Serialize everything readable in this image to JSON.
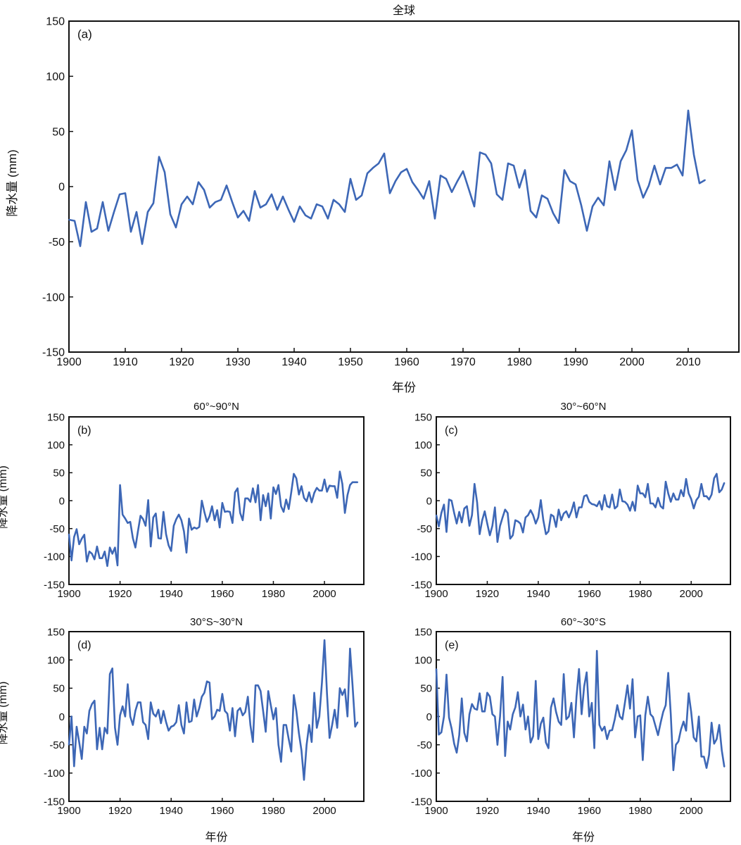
{
  "line_color": "#3d67b6",
  "chart_data": [
    {
      "type": "line",
      "panel": "(a)",
      "title": "全球",
      "xlabel": "年份",
      "ylabel": "降水量 (mm)",
      "xlim": [
        1900,
        2019
      ],
      "ylim": [
        -150,
        150
      ],
      "xticks": [
        1900,
        1910,
        1920,
        1930,
        1940,
        1950,
        1960,
        1970,
        1980,
        1990,
        2000,
        2010
      ],
      "yticks": [
        -150,
        -100,
        -50,
        0,
        50,
        100,
        150
      ],
      "x_start": 1900,
      "values": [
        -30,
        -31,
        -54,
        -14,
        -41,
        -38,
        -14,
        -40,
        -23,
        -7,
        -6,
        -41,
        -23,
        -52,
        -23,
        -15,
        27,
        13,
        -25,
        -37,
        -16,
        -9,
        -16,
        4,
        -3,
        -19,
        -14,
        -12,
        1,
        -14,
        -28,
        -22,
        -31,
        -4,
        -19,
        -16,
        -7,
        -21,
        -9,
        -21,
        -32,
        -18,
        -26,
        -29,
        -16,
        -18,
        -29,
        -12,
        -16,
        -23,
        7,
        -12,
        -8,
        12,
        17,
        21,
        30,
        -6,
        5,
        13,
        16,
        4,
        -3,
        -11,
        5,
        -29,
        10,
        7,
        -5,
        5,
        14,
        -2,
        -18,
        31,
        29,
        21,
        -7,
        -12,
        21,
        19,
        -1,
        15,
        -22,
        -28,
        -8,
        -11,
        -24,
        -33,
        15,
        5,
        2,
        -17,
        -40,
        -18,
        -10,
        -17,
        23,
        -3,
        23,
        33,
        51,
        6,
        -10,
        1,
        19,
        2,
        17,
        17,
        20,
        10,
        69,
        29,
        3,
        6
      ]
    },
    {
      "type": "line",
      "panel": "(b)",
      "title": "60°~90°N",
      "xlabel": "",
      "ylabel": "降水量 (mm)",
      "xlim": [
        1900,
        2015.4
      ],
      "ylim": [
        -150,
        150
      ],
      "xticks": [
        1900,
        1920,
        1940,
        1960,
        1980,
        2000
      ],
      "yticks": [
        -150,
        -100,
        -50,
        0,
        50,
        100,
        150
      ],
      "x_start": 1900,
      "values": [
        -60,
        -107,
        -65,
        -51,
        -78,
        -68,
        -61,
        -109,
        -91,
        -95,
        -105,
        -82,
        -103,
        -103,
        -91,
        -117,
        -84,
        -95,
        -84,
        -116,
        28,
        -25,
        -32,
        -40,
        -38,
        -67,
        -84,
        -55,
        -27,
        -33,
        -45,
        1,
        -82,
        -30,
        -23,
        -67,
        -68,
        -20,
        -60,
        -80,
        -90,
        -45,
        -33,
        -25,
        -35,
        -55,
        -93,
        -32,
        -52,
        -48,
        -50,
        -47,
        0,
        -20,
        -38,
        -28,
        -10,
        -35,
        -17,
        -48,
        -4,
        -20,
        -19,
        -20,
        -40,
        15,
        22,
        -22,
        -35,
        4,
        4,
        -2,
        22,
        -3,
        28,
        -35,
        10,
        -10,
        13,
        -32,
        24,
        12,
        28,
        -10,
        -20,
        2,
        -15,
        15,
        48,
        40,
        11,
        26,
        5,
        -1,
        15,
        -3,
        14,
        23,
        18,
        18,
        38,
        16,
        27,
        26,
        26,
        5,
        52,
        30,
        -22,
        10,
        28,
        33,
        33,
        33
      ]
    },
    {
      "type": "line",
      "panel": "(c)",
      "title": "30°~60°N",
      "xlabel": "",
      "ylabel": "",
      "xlim": [
        1900,
        2015.4
      ],
      "ylim": [
        -150,
        150
      ],
      "xticks": [
        1900,
        1920,
        1940,
        1960,
        1980,
        2000
      ],
      "yticks": [
        -150,
        -100,
        -50,
        0,
        50,
        100,
        150
      ],
      "x_start": 1900,
      "values": [
        -26,
        -46,
        -22,
        -7,
        -56,
        2,
        0,
        -22,
        -41,
        -20,
        -39,
        -14,
        -10,
        -45,
        -26,
        30,
        -3,
        -60,
        -35,
        -19,
        -41,
        -62,
        -45,
        -12,
        -74,
        -45,
        -30,
        -16,
        -22,
        -68,
        -62,
        -35,
        -37,
        -41,
        -57,
        -30,
        -26,
        -17,
        -26,
        -41,
        -30,
        1,
        -35,
        -60,
        -55,
        -25,
        -28,
        -47,
        -16,
        -35,
        -23,
        -19,
        -30,
        -19,
        -3,
        -30,
        -12,
        -12,
        8,
        10,
        -2,
        -6,
        -7,
        -10,
        -1,
        -16,
        10,
        -10,
        -12,
        11,
        -14,
        -10,
        20,
        -1,
        -2,
        -7,
        -18,
        -2,
        -18,
        27,
        13,
        13,
        6,
        30,
        -5,
        -5,
        -12,
        5,
        -10,
        -14,
        34,
        13,
        -2,
        13,
        2,
        2,
        19,
        8,
        39,
        13,
        3,
        -14,
        1,
        7,
        30,
        8,
        8,
        2,
        11,
        40,
        48,
        15,
        20,
        32
      ]
    },
    {
      "type": "line",
      "panel": "(d)",
      "title": "30°S~30°N",
      "xlabel": "年份",
      "ylabel": "降水量 (mm)",
      "xlim": [
        1900,
        2015.4
      ],
      "ylim": [
        -150,
        150
      ],
      "xticks": [
        1900,
        1920,
        1940,
        1960,
        1980,
        2000
      ],
      "yticks": [
        -150,
        -100,
        -50,
        0,
        50,
        100,
        150
      ],
      "x_start": 1900,
      "values": [
        -50,
        0,
        -88,
        -18,
        -45,
        -75,
        -18,
        -30,
        10,
        22,
        28,
        -58,
        -20,
        -58,
        -20,
        -30,
        75,
        85,
        -20,
        -50,
        2,
        18,
        0,
        57,
        0,
        -15,
        10,
        25,
        25,
        -10,
        -15,
        -40,
        25,
        5,
        0,
        12,
        -12,
        10,
        -10,
        -25,
        -18,
        -16,
        -10,
        20,
        -15,
        -30,
        25,
        -10,
        -8,
        30,
        0,
        15,
        35,
        42,
        62,
        60,
        -5,
        0,
        12,
        10,
        40,
        10,
        5,
        -25,
        15,
        -35,
        10,
        15,
        2,
        8,
        35,
        -15,
        -45,
        55,
        55,
        45,
        10,
        -27,
        45,
        20,
        -5,
        15,
        -50,
        -80,
        -15,
        -15,
        -40,
        -62,
        38,
        10,
        -30,
        -60,
        -112,
        -50,
        -15,
        -45,
        42,
        -20,
        0,
        60,
        135,
        40,
        -38,
        -15,
        12,
        -20,
        50,
        38,
        48,
        0,
        120,
        55,
        -18,
        -10
      ]
    },
    {
      "type": "line",
      "panel": "(e)",
      "title": "60°~30°S",
      "xlabel": "年份",
      "ylabel": "",
      "xlim": [
        1900,
        2015.4
      ],
      "ylim": [
        -150,
        150
      ],
      "xticks": [
        1900,
        1920,
        1940,
        1960,
        1980,
        2000
      ],
      "yticks": [
        -150,
        -100,
        -50,
        0,
        50,
        100,
        150
      ],
      "x_start": 1900,
      "values": [
        84,
        -32,
        -28,
        0,
        74,
        -2,
        -21,
        -48,
        -64,
        -33,
        32,
        -29,
        -44,
        4,
        22,
        14,
        12,
        41,
        9,
        9,
        42,
        35,
        4,
        0,
        -50,
        0,
        70,
        -70,
        -9,
        -23,
        4,
        16,
        43,
        0,
        21,
        -23,
        0,
        -46,
        -35,
        63,
        -40,
        -13,
        -2,
        -46,
        -56,
        16,
        32,
        8,
        -9,
        -15,
        75,
        -5,
        0,
        24,
        -37,
        35,
        84,
        4,
        53,
        78,
        0,
        24,
        -56,
        116,
        -15,
        -25,
        -18,
        -40,
        -25,
        -24,
        -5,
        20,
        0,
        -5,
        24,
        55,
        14,
        66,
        -37,
        0,
        2,
        -77,
        2,
        35,
        4,
        -1,
        -17,
        -33,
        -11,
        8,
        20,
        77,
        4,
        -95,
        -50,
        -44,
        -23,
        -9,
        -25,
        41,
        8,
        -37,
        -44,
        0,
        -71,
        -71,
        -91,
        -68,
        -11,
        -48,
        -40,
        -15,
        -60,
        -89
      ]
    }
  ]
}
